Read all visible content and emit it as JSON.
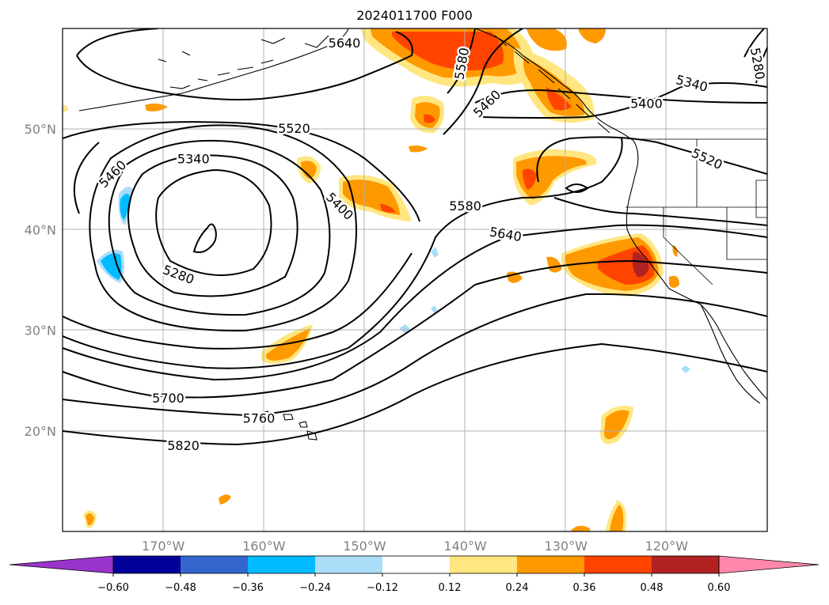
{
  "title": "2024011700 F000",
  "map": {
    "lat_range": [
      10,
      60
    ],
    "lon_range": [
      -180,
      -110
    ],
    "lat_ticks": [
      {
        "value": 50,
        "label": "50°N"
      },
      {
        "value": 40,
        "label": "40°N"
      },
      {
        "value": 30,
        "label": "30°N"
      },
      {
        "value": 20,
        "label": "20°N"
      }
    ],
    "lon_ticks": [
      {
        "value": -170,
        "label": "170°W"
      },
      {
        "value": -160,
        "label": "160°W"
      },
      {
        "value": -150,
        "label": "150°W"
      },
      {
        "value": -140,
        "label": "140°W"
      },
      {
        "value": -130,
        "label": "130°W"
      },
      {
        "value": -120,
        "label": "120°W"
      }
    ],
    "grid": true,
    "contour_labels": [
      {
        "text": "5640",
        "lon": -152,
        "lat": 58.5
      },
      {
        "text": "5580",
        "lon": -140.3,
        "lat": 56.5,
        "rotate": -80
      },
      {
        "text": "5460",
        "lon": -137.8,
        "lat": 52.5,
        "rotate": -45
      },
      {
        "text": "5340",
        "lon": -117.5,
        "lat": 54.5,
        "rotate": 15
      },
      {
        "text": "5400",
        "lon": -122,
        "lat": 52.5
      },
      {
        "text": "5280",
        "lon": -111,
        "lat": 56.5,
        "rotate": 80
      },
      {
        "text": "5520",
        "lon": -157,
        "lat": 50
      },
      {
        "text": "5520",
        "lon": -116,
        "lat": 47,
        "rotate": 25
      },
      {
        "text": "5340",
        "lon": -167,
        "lat": 47
      },
      {
        "text": "5460",
        "lon": -175,
        "lat": 45.5,
        "rotate": -45
      },
      {
        "text": "5400",
        "lon": -152.5,
        "lat": 42.3,
        "rotate": 45
      },
      {
        "text": "5580",
        "lon": -140,
        "lat": 42.3
      },
      {
        "text": "5640",
        "lon": -136,
        "lat": 39.5,
        "rotate": 10
      },
      {
        "text": "5280",
        "lon": -168.5,
        "lat": 35.5,
        "rotate": 20
      },
      {
        "text": "5700",
        "lon": -169.5,
        "lat": 23.2
      },
      {
        "text": "5760",
        "lon": -160.5,
        "lat": 21.2
      },
      {
        "text": "5820",
        "lon": -168,
        "lat": 18.5
      }
    ]
  },
  "colorbar": {
    "ticks": [
      "−0.60",
      "−0.48",
      "−0.36",
      "−0.24",
      "−0.12",
      "0.12",
      "0.24",
      "0.36",
      "0.48",
      "0.60"
    ],
    "colors": [
      "#9933cc",
      "#000099",
      "#3366cc",
      "#00bbff",
      "#aaddf7",
      "#ffffff",
      "#ffe680",
      "#ff9900",
      "#ff4400",
      "#b22222",
      "#ff88aa"
    ],
    "extend": "both"
  }
}
